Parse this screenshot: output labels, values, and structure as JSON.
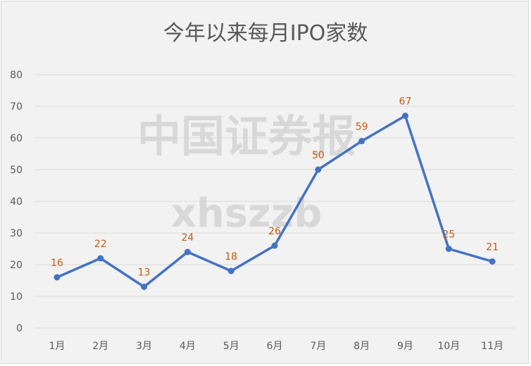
{
  "chart_data": {
    "type": "line",
    "title": "今年以来每月IPO家数",
    "categories": [
      "1月",
      "2月",
      "3月",
      "4月",
      "5月",
      "6月",
      "7月",
      "8月",
      "9月",
      "10月",
      "11月"
    ],
    "series": [
      {
        "values": [
          16,
          22,
          13,
          24,
          18,
          26,
          50,
          59,
          67,
          25,
          21
        ]
      }
    ],
    "ylim": [
      0,
      80
    ],
    "yticks": [
      0,
      10,
      20,
      30,
      40,
      50,
      60,
      70,
      80
    ],
    "grid": true,
    "legend": "none",
    "data_labels": true,
    "colors": {
      "line": "#4472c4",
      "data_label": "#c55a11",
      "grid": "#d9d9d9",
      "background": "#f2f2f2"
    }
  },
  "watermark": {
    "line1": "中国证券报",
    "line2": "xhszzb"
  }
}
